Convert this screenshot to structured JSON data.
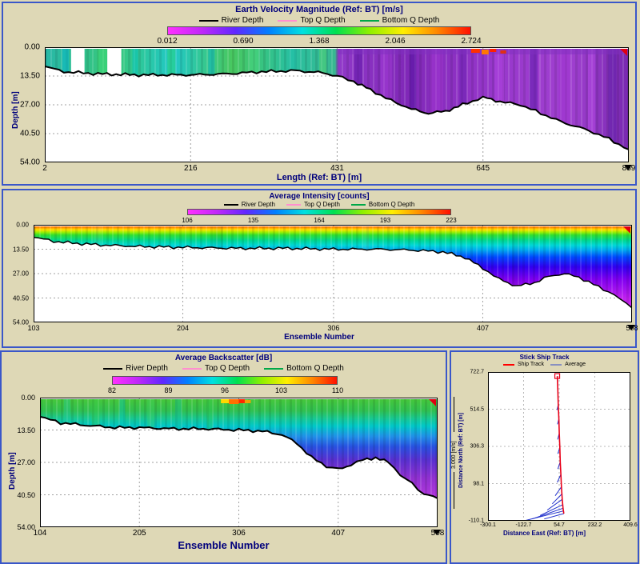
{
  "window": {
    "background": "#ded8b6",
    "panel_border": "#3a57c9"
  },
  "colormap": [
    "#ff30ff",
    "#c028f8",
    "#6028ff",
    "#0080ff",
    "#00e0e0",
    "#00e050",
    "#90f000",
    "#ffee00",
    "#ff8800",
    "#ff1000"
  ],
  "chart_data": [
    {
      "type": "heatmap",
      "title": "Earth Velocity Magnitude (Ref: BT) [m/s]",
      "legend": [
        {
          "label": "River Depth",
          "color": "#000000"
        },
        {
          "label": "Top Q Depth",
          "color": "#ff8fcf"
        },
        {
          "label": "Bottom Q Depth",
          "color": "#00a848"
        }
      ],
      "colorbar_ticks": [
        "0.012",
        "0.690",
        "1.368",
        "2.046",
        "2.724"
      ],
      "xlabel": "Length (Ref: BT) [m]",
      "ylabel": "Depth [m]",
      "x_ticks": [
        "2",
        "216",
        "431",
        "645",
        "859"
      ],
      "y_ticks": [
        "0.00",
        "13.50",
        "27.00",
        "40.50",
        "54.00"
      ],
      "xlim": [
        2,
        859
      ],
      "ylim": [
        0,
        54
      ],
      "bed_profile": {
        "x": [
          2,
          30,
          80,
          140,
          216,
          270,
          320,
          370,
          410,
          431,
          455,
          480,
          510,
          540,
          565,
          590,
          615,
          645,
          670,
          700,
          730,
          760,
          800,
          830,
          859
        ],
        "depth": [
          9,
          11.5,
          12.5,
          13,
          13,
          12.5,
          11.5,
          11,
          12,
          13.5,
          16,
          20,
          25,
          29,
          31,
          30,
          27,
          23.5,
          25.5,
          27,
          31,
          35,
          39,
          43,
          48
        ]
      },
      "field_gradient": [
        [
          0,
          "#28b8a8"
        ],
        [
          0.12,
          "#38c878"
        ],
        [
          0.22,
          "#20c8c8"
        ],
        [
          0.32,
          "#48c860"
        ],
        [
          0.42,
          "#28c0a0"
        ],
        [
          0.497,
          "#38b890"
        ],
        [
          0.503,
          "#9038c8"
        ],
        [
          0.62,
          "#8028b8"
        ],
        [
          0.78,
          "#9838cc"
        ],
        [
          0.9,
          "#a040d0"
        ],
        [
          1,
          "#7828b0"
        ]
      ]
    },
    {
      "type": "heatmap",
      "title": "Average Intensity [counts]",
      "legend": [
        {
          "label": "River Depth",
          "color": "#000000"
        },
        {
          "label": "Top Q Depth",
          "color": "#ff8fcf"
        },
        {
          "label": "Bottom Q Depth",
          "color": "#00a848"
        }
      ],
      "colorbar_ticks": [
        "106",
        "135",
        "164",
        "193",
        "223"
      ],
      "xlabel": "Ensemble Number",
      "x_ticks": [
        "103",
        "204",
        "306",
        "407",
        "508"
      ],
      "y_ticks": [
        "0.00",
        "13.50",
        "27.00",
        "40.50",
        "54.00"
      ],
      "xlim": [
        103,
        508
      ],
      "ylim": [
        0,
        54
      ],
      "bed_profile": {
        "x": [
          103,
          120,
          145,
          175,
          204,
          240,
          275,
          306,
          335,
          360,
          380,
          395,
          407,
          418,
          430,
          442,
          452,
          462,
          472,
          482,
          492,
          500,
          508
        ],
        "depth": [
          7,
          9.5,
          11,
          12,
          12.5,
          13,
          13,
          13.5,
          13.5,
          14,
          15,
          18,
          24,
          30,
          34,
          32,
          28.5,
          27,
          29,
          33,
          37,
          41,
          46
        ]
      },
      "field_gradient": [
        [
          0,
          "#ff2000"
        ],
        [
          0.025,
          "#ff8800"
        ],
        [
          0.05,
          "#ffe000"
        ],
        [
          0.075,
          "#a0f000"
        ],
        [
          0.105,
          "#30e030"
        ],
        [
          0.16,
          "#00d890"
        ],
        [
          0.21,
          "#00d8d8"
        ],
        [
          0.26,
          "#00a8f0"
        ],
        [
          0.33,
          "#0048ff"
        ],
        [
          0.43,
          "#3000f0"
        ],
        [
          0.56,
          "#8000f0"
        ],
        [
          0.75,
          "#c020f0"
        ],
        [
          1,
          "#e040f0"
        ]
      ]
    },
    {
      "type": "heatmap",
      "title": "Average Backscatter [dB]",
      "legend": [
        {
          "label": "River Depth",
          "color": "#000000"
        },
        {
          "label": "Top Q Depth",
          "color": "#ff8fcf"
        },
        {
          "label": "Bottom Q Depth",
          "color": "#00a848"
        }
      ],
      "colorbar_ticks": [
        "82",
        "89",
        "96",
        "103",
        "110"
      ],
      "xlabel": "Ensemble Number",
      "ylabel": "Depth [m]",
      "x_ticks": [
        "104",
        "205",
        "306",
        "407",
        "508"
      ],
      "y_ticks": [
        "0.00",
        "13.50",
        "27.00",
        "40.50",
        "54.00"
      ],
      "xlim": [
        104,
        508
      ],
      "ylim": [
        0,
        54
      ],
      "bed_profile": {
        "x": [
          104,
          125,
          150,
          180,
          205,
          240,
          270,
          306,
          330,
          350,
          365,
          380,
          395,
          407,
          420,
          432,
          445,
          458,
          470,
          482,
          494,
          508
        ],
        "depth": [
          8,
          10.5,
          11.5,
          12.5,
          12.5,
          13,
          13,
          13.5,
          14,
          15.5,
          19,
          25,
          28.5,
          30,
          28,
          26,
          25,
          27,
          32,
          36,
          40,
          42
        ]
      },
      "field_gradient": [
        [
          0,
          "#48c838"
        ],
        [
          0.1,
          "#30c050"
        ],
        [
          0.16,
          "#18c890"
        ],
        [
          0.22,
          "#00c8c8"
        ],
        [
          0.3,
          "#2090e8"
        ],
        [
          0.38,
          "#2850e0"
        ],
        [
          0.48,
          "#5830d0"
        ],
        [
          0.62,
          "#9030d0"
        ],
        [
          0.8,
          "#b838e0"
        ],
        [
          1,
          "#c840e8"
        ]
      ]
    },
    {
      "type": "line",
      "title": "Stick Ship Track",
      "legend": [
        {
          "label": "Ship Track",
          "color": "#ff0000"
        },
        {
          "label": "Average",
          "color": "#8890c0"
        }
      ],
      "xlabel": "Distance East (Ref: BT) [m]",
      "ylabel": "Distance North (Ref: BT) [m]",
      "scale_label": "3.000 [m/s]",
      "x_ticks": [
        "-300.1",
        "-122.7",
        "54.7",
        "232.2",
        "409.6"
      ],
      "y_ticks": [
        "722.7",
        "514.5",
        "306.3",
        "98.1",
        "-110.1"
      ],
      "xlim": [
        -300.1,
        409.6
      ],
      "ylim": [
        -110.1,
        722.7
      ],
      "ship_track": {
        "x": [
          45,
          48,
          50,
          53,
          55,
          58,
          60,
          63,
          66,
          70,
          74,
          78
        ],
        "y": [
          700,
          620,
          540,
          460,
          380,
          300,
          220,
          150,
          80,
          10,
          -40,
          -70
        ]
      },
      "sticks": [
        [
          50,
          540,
          44,
          510
        ],
        [
          53,
          460,
          46,
          430
        ],
        [
          55,
          380,
          47,
          345
        ],
        [
          58,
          300,
          48,
          265
        ],
        [
          60,
          220,
          48,
          180
        ],
        [
          63,
          150,
          45,
          105
        ],
        [
          66,
          80,
          35,
          30
        ],
        [
          68,
          40,
          20,
          -15
        ],
        [
          70,
          10,
          -5,
          -50
        ],
        [
          72,
          -20,
          -40,
          -80
        ],
        [
          74,
          -40,
          -80,
          -100
        ],
        [
          76,
          -55,
          -112,
          -108
        ],
        [
          78,
          -70,
          -20,
          -100
        ]
      ]
    }
  ]
}
